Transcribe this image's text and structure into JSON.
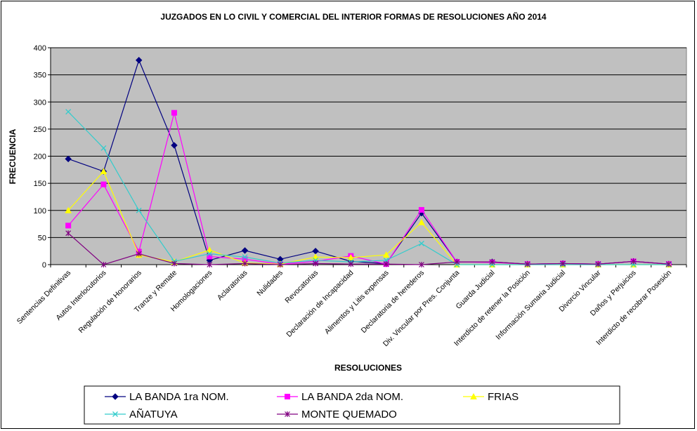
{
  "chart_data": {
    "type": "line",
    "title": "JUZGADOS EN LO CIVIL Y COMERCIAL DEL INTERIOR FORMAS DE RESOLUCIONES AÑO 2014",
    "xlabel": "RESOLUCIONES",
    "ylabel": "FRECUENCIA",
    "ylim": [
      0,
      400
    ],
    "yticks": [
      0,
      50,
      100,
      150,
      200,
      250,
      300,
      350,
      400
    ],
    "grid": true,
    "plot_background": "#c0c0c0",
    "legend_position": "bottom",
    "categories": [
      "Sentencias Definitivas",
      "Autos Interlocutorios",
      "Regulación de Honorarios",
      "Tranze y Remate",
      "Homologaciones",
      "Aclaratorias",
      "Nulidades",
      "Revocatorias",
      "Declaración de Incapacidad",
      "Alimentos y Litis expensas",
      "Declaratoria de herederos",
      "Div. Vincular por Pres. Conjunta",
      "Guarda Judicial",
      "Interdicto de retener la Posición",
      "Información Sumaria Judicial",
      "Divorcio Vincular",
      "Daños y Perjuicios",
      "Interdicto de recobrar Posesión"
    ],
    "series": [
      {
        "name": "LA BANDA 1ra NOM.",
        "color": "#000080",
        "marker": "diamond",
        "values": [
          195,
          172,
          377,
          220,
          8,
          26,
          10,
          25,
          6,
          2,
          95,
          5,
          5,
          1,
          2,
          1,
          6,
          1
        ]
      },
      {
        "name": "LA BANDA 2da NOM.",
        "color": "#ff00ff",
        "marker": "square",
        "values": [
          72,
          148,
          24,
          280,
          15,
          10,
          1,
          6,
          16,
          1,
          101,
          5,
          4,
          1,
          2,
          1,
          6,
          1
        ]
      },
      {
        "name": "FRIAS",
        "color": "#ffff00",
        "marker": "triangle",
        "values": [
          100,
          172,
          18,
          5,
          27,
          3,
          1,
          14,
          13,
          18,
          78,
          0,
          0,
          0,
          0,
          0,
          0,
          0
        ]
      },
      {
        "name": "AÑATUYA",
        "color": "#33cccc",
        "marker": "x",
        "values": [
          282,
          215,
          100,
          6,
          20,
          14,
          3,
          8,
          5,
          8,
          39,
          0,
          0,
          0,
          0,
          0,
          0,
          0
        ]
      },
      {
        "name": "MONTE QUEMADO",
        "color": "#800080",
        "marker": "star",
        "values": [
          58,
          0,
          20,
          2,
          0,
          2,
          0,
          2,
          1,
          1,
          0,
          5,
          5,
          1,
          2,
          1,
          6,
          1
        ]
      }
    ]
  }
}
